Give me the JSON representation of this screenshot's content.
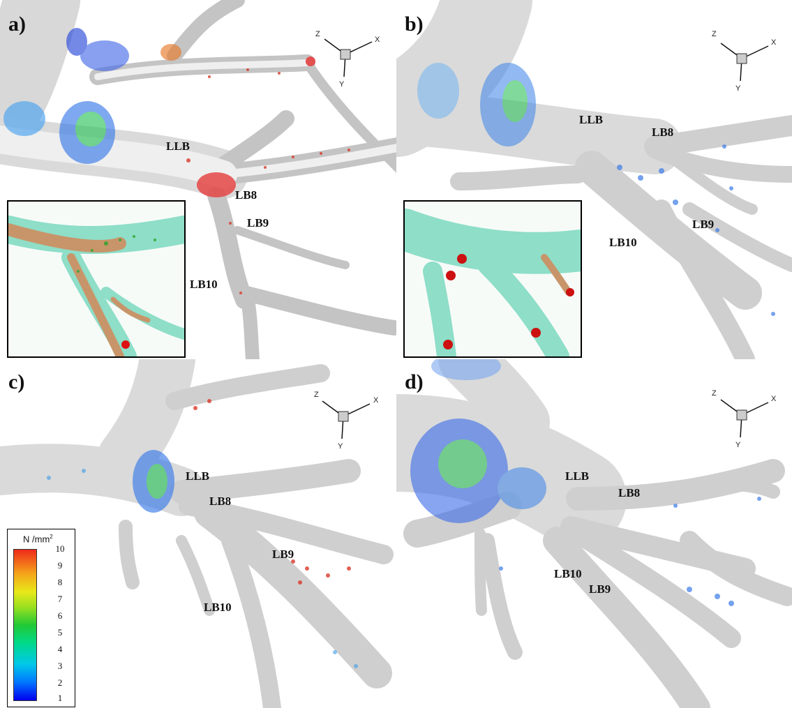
{
  "panels": [
    {
      "id": "a",
      "label": "a)",
      "branches": [
        "LLB",
        "LB8",
        "LB9",
        "LB10"
      ]
    },
    {
      "id": "b",
      "label": "b)",
      "branches": [
        "LLB",
        "LB8",
        "LB9",
        "LB10"
      ]
    },
    {
      "id": "c",
      "label": "c)",
      "branches": [
        "LLB",
        "LB8",
        "LB9",
        "LB10"
      ]
    },
    {
      "id": "d",
      "label": "d)",
      "branches": [
        "LLB",
        "LB8",
        "LB10",
        "LB9"
      ]
    }
  ],
  "axes": {
    "z": "Z",
    "x": "X",
    "y": "Y"
  },
  "legend": {
    "title": "N /mm",
    "title_sup": "2",
    "ticks": [
      "10",
      "9",
      "8",
      "7",
      "6",
      "5",
      "4",
      "3",
      "2",
      "1"
    ],
    "colors": {
      "low": "#0000ee",
      "mid": "#22c934",
      "high": "#ee2a1a"
    }
  },
  "colors": {
    "airway": "#dcdcdc",
    "inset_airway": "#7fd9bf",
    "inset_core": "#c8956a",
    "deposit_red": "#cc1111"
  }
}
